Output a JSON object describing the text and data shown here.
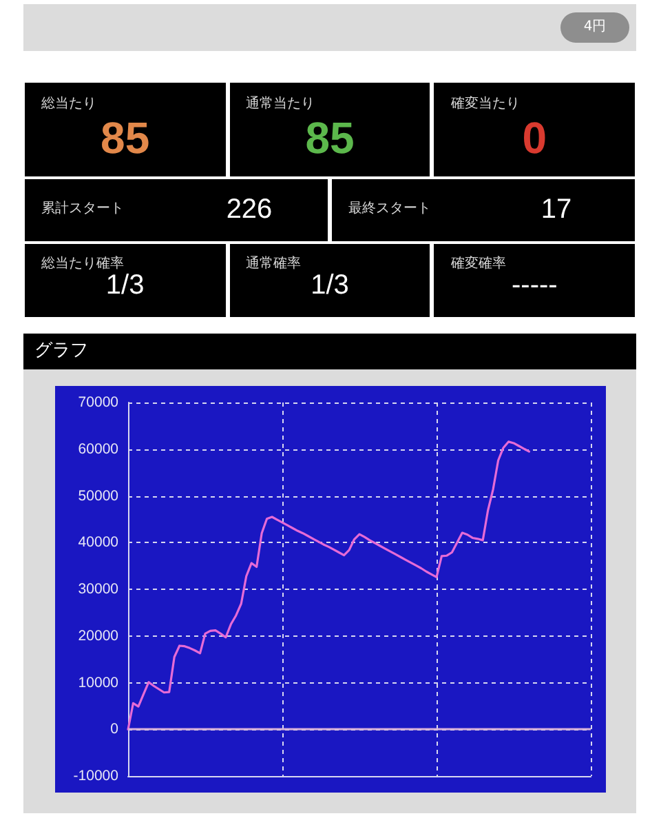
{
  "chart_data": [
    {
      "type": "other",
      "annotations": [
        "4円",
        "総当たり",
        "85",
        "通常当たり",
        "85",
        "確変当たり",
        "0",
        "累計スタート",
        "226",
        "最終スタート",
        "17",
        "総当たり確率",
        "1/3",
        "通常確率",
        "1/3",
        "確変確率",
        "-----"
      ],
      "colors": [
        "#e2884a",
        "#5cb84c",
        "#d93a2f",
        "#ffffff",
        "#ffffff",
        "#ffffff",
        "#ffffff",
        "#ffffff"
      ]
    },
    {
      "type": "line",
      "title": "グラフ",
      "categories": [
        null,
        null,
        null,
        null,
        null,
        null,
        null,
        null,
        null,
        null,
        null,
        null,
        null,
        null,
        null,
        null,
        null,
        null,
        null,
        null,
        null,
        null,
        null,
        null,
        null,
        null,
        null,
        null,
        null,
        null,
        null,
        null,
        null,
        null,
        null,
        null,
        null,
        null,
        null,
        null,
        null,
        null,
        null,
        null,
        null,
        null,
        null,
        null,
        null,
        null,
        null,
        null,
        null,
        null,
        null,
        null,
        null,
        null,
        null,
        null,
        null,
        null,
        null,
        null,
        null,
        null,
        null,
        null,
        null,
        null,
        null,
        null,
        null,
        null,
        null,
        null,
        null,
        null,
        null,
        null,
        null,
        null,
        null,
        null,
        null,
        null,
        null,
        null,
        null,
        null,
        null
      ],
      "values": [
        0,
        5600,
        4900,
        7500,
        10100,
        9300,
        8600,
        7900,
        8000,
        15500,
        17900,
        17800,
        17400,
        16900,
        16300,
        20500,
        21100,
        21200,
        20500,
        19700,
        22500,
        24400,
        26900,
        32800,
        35600,
        34800,
        42000,
        45100,
        45500,
        44900,
        44300,
        43700,
        43100,
        42500,
        42000,
        41400,
        40800,
        40200,
        39600,
        39100,
        38500,
        37900,
        37300,
        38400,
        40700,
        41800,
        41200,
        40500,
        39900,
        39300,
        38700,
        38100,
        37500,
        36900,
        36300,
        35700,
        35100,
        34500,
        33800,
        33200,
        32600,
        37100,
        37200,
        37900,
        40000,
        42100,
        41700,
        41000,
        40800,
        40500,
        46900,
        51400,
        57600,
        60300,
        61600,
        61300,
        60700,
        60100,
        59500,
        null,
        null,
        null,
        null,
        null,
        null,
        null,
        null,
        null,
        null,
        null,
        null
      ],
      "color": "#e66bd6",
      "ylim": [
        -10000,
        70000
      ],
      "yticks": [
        -10000,
        0,
        10000,
        20000,
        30000,
        40000,
        50000,
        60000,
        70000
      ],
      "grid": true,
      "tick_labels": "y",
      "line_style": "solid",
      "ref_lines": [
        {
          "axis": "y",
          "value": 0,
          "color": "#d9b3d9"
        }
      ]
    }
  ]
}
